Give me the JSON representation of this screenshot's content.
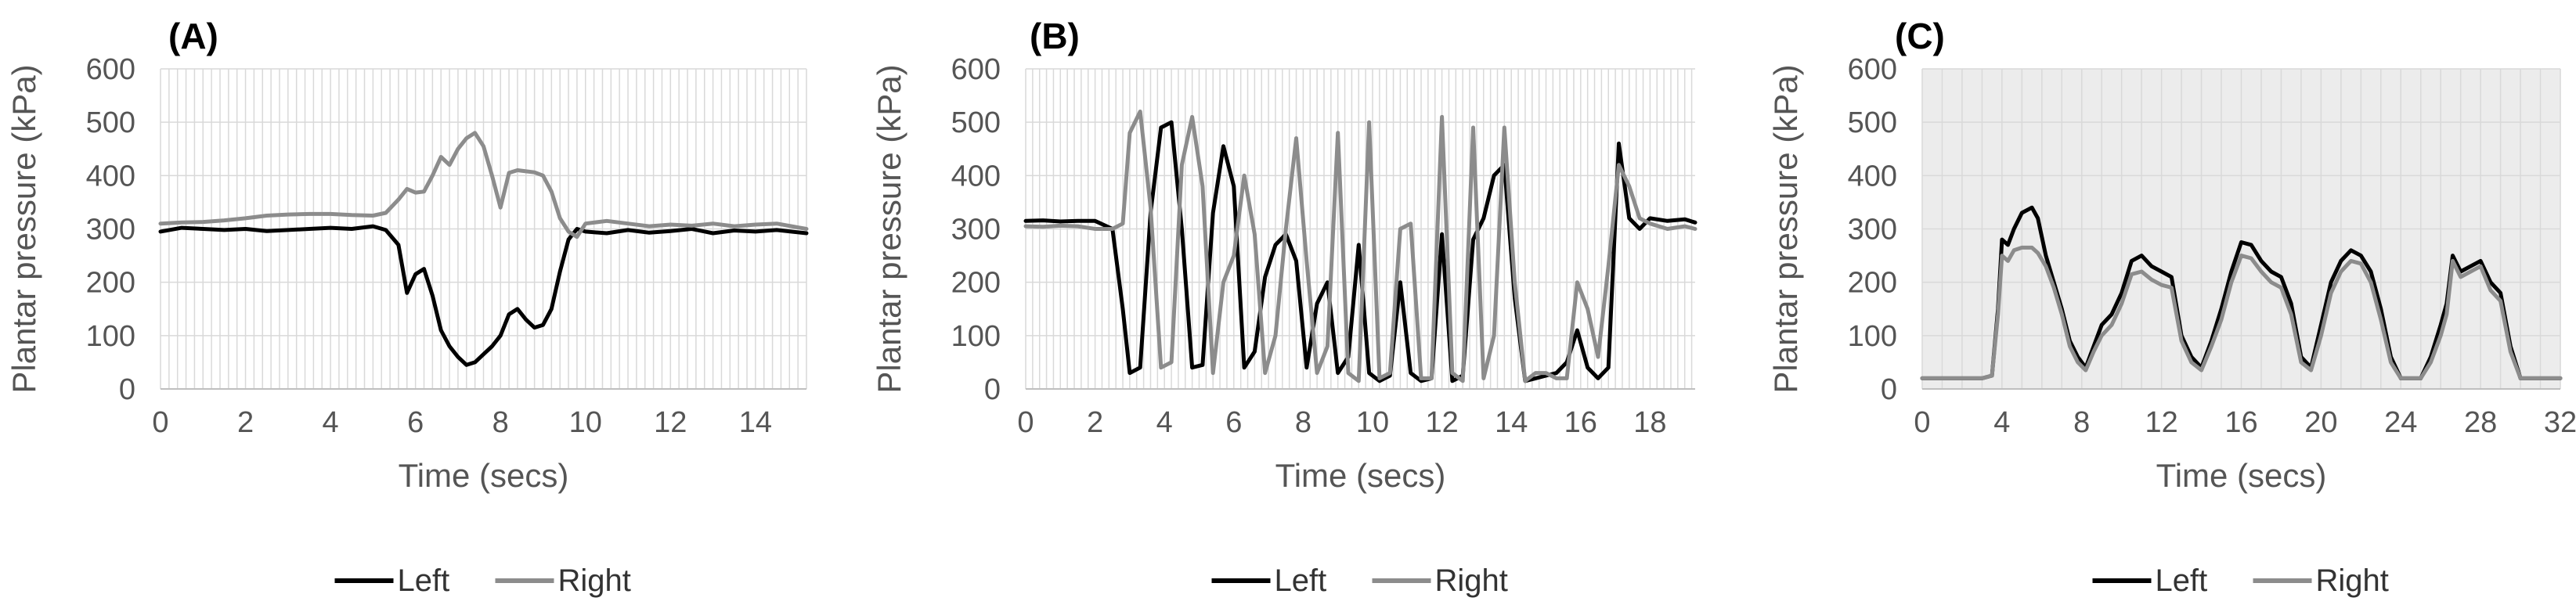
{
  "colors": {
    "left": "#000000",
    "right": "#8c8c8c",
    "grid": "#d9d9d9",
    "plot_bg_c": "#ececec"
  },
  "chart_data": [
    {
      "type": "line",
      "panel_label": "(A)",
      "xlabel": "Time (secs)",
      "ylabel": "Plantar pressure (kPa)",
      "xlim": [
        0,
        15.2
      ],
      "ylim": [
        0,
        600
      ],
      "xticks": [
        0,
        2,
        4,
        6,
        8,
        10,
        12,
        14
      ],
      "yticks": [
        0,
        100,
        200,
        300,
        400,
        500,
        600
      ],
      "legend_position": "bottom",
      "series": [
        {
          "name": "Left",
          "color": "#000000",
          "x": [
            0,
            0.5,
            1,
            1.5,
            2,
            2.5,
            3,
            3.5,
            4,
            4.5,
            5,
            5.3,
            5.6,
            5.8,
            6,
            6.2,
            6.4,
            6.6,
            6.8,
            7,
            7.2,
            7.4,
            7.6,
            7.8,
            8,
            8.2,
            8.4,
            8.6,
            8.8,
            9,
            9.2,
            9.4,
            9.6,
            9.8,
            10,
            10.5,
            11,
            11.5,
            12,
            12.5,
            13,
            13.5,
            14,
            14.5,
            15.2
          ],
          "y": [
            295,
            302,
            300,
            298,
            300,
            296,
            298,
            300,
            302,
            300,
            305,
            298,
            270,
            180,
            215,
            225,
            175,
            110,
            80,
            60,
            45,
            50,
            65,
            80,
            100,
            140,
            150,
            130,
            115,
            120,
            150,
            220,
            280,
            300,
            295,
            292,
            298,
            293,
            296,
            300,
            292,
            297,
            295,
            298,
            292
          ]
        },
        {
          "name": "Right",
          "color": "#8c8c8c",
          "x": [
            0,
            0.5,
            1,
            1.5,
            2,
            2.5,
            3,
            3.5,
            4,
            4.5,
            5,
            5.3,
            5.6,
            5.8,
            6,
            6.2,
            6.4,
            6.6,
            6.8,
            7,
            7.2,
            7.4,
            7.6,
            7.8,
            8,
            8.2,
            8.4,
            8.6,
            8.8,
            9,
            9.2,
            9.4,
            9.6,
            9.8,
            10,
            10.5,
            11,
            11.5,
            12,
            12.5,
            13,
            13.5,
            14,
            14.5,
            15.2
          ],
          "y": [
            310,
            312,
            313,
            316,
            320,
            325,
            327,
            328,
            328,
            326,
            325,
            330,
            355,
            375,
            368,
            370,
            400,
            435,
            420,
            450,
            470,
            480,
            455,
            400,
            340,
            405,
            410,
            408,
            406,
            400,
            370,
            320,
            295,
            285,
            310,
            315,
            310,
            305,
            308,
            306,
            310,
            305,
            308,
            310,
            300
          ]
        }
      ]
    },
    {
      "type": "line",
      "panel_label": "(B)",
      "xlabel": "Time (secs)",
      "ylabel": "Plantar pressure (kPa)",
      "xlim": [
        0,
        19.3
      ],
      "ylim": [
        0,
        600
      ],
      "xticks": [
        0,
        2,
        4,
        6,
        8,
        10,
        12,
        14,
        16,
        18
      ],
      "yticks": [
        0,
        100,
        200,
        300,
        400,
        500,
        600
      ],
      "legend_position": "bottom",
      "series": [
        {
          "name": "Left",
          "color": "#000000",
          "x": [
            0,
            0.5,
            1,
            1.5,
            2,
            2.5,
            2.8,
            3,
            3.3,
            3.6,
            3.9,
            4.2,
            4.5,
            4.8,
            5.1,
            5.4,
            5.7,
            6,
            6.3,
            6.6,
            6.9,
            7.2,
            7.5,
            7.8,
            8.1,
            8.4,
            8.7,
            9,
            9.3,
            9.6,
            9.9,
            10.2,
            10.5,
            10.8,
            11.1,
            11.4,
            11.7,
            12,
            12.3,
            12.6,
            12.9,
            13.2,
            13.5,
            13.8,
            14.1,
            14.4,
            14.7,
            15,
            15.3,
            15.6,
            15.9,
            16.2,
            16.5,
            16.8,
            17.1,
            17.4,
            17.7,
            18,
            18.5,
            19,
            19.3
          ],
          "y": [
            315,
            316,
            314,
            315,
            315,
            300,
            150,
            30,
            40,
            330,
            490,
            500,
            300,
            40,
            45,
            330,
            455,
            380,
            40,
            70,
            210,
            270,
            290,
            240,
            40,
            160,
            200,
            30,
            60,
            270,
            30,
            15,
            25,
            200,
            30,
            15,
            20,
            290,
            15,
            25,
            280,
            320,
            400,
            420,
            170,
            15,
            20,
            25,
            30,
            50,
            110,
            40,
            20,
            40,
            460,
            320,
            300,
            320,
            315,
            318,
            312
          ]
        },
        {
          "name": "Right",
          "color": "#8c8c8c",
          "x": [
            0,
            0.5,
            1,
            1.5,
            2,
            2.5,
            2.8,
            3,
            3.3,
            3.6,
            3.9,
            4.2,
            4.5,
            4.8,
            5.1,
            5.4,
            5.7,
            6,
            6.3,
            6.6,
            6.9,
            7.2,
            7.5,
            7.8,
            8.1,
            8.4,
            8.7,
            9,
            9.3,
            9.6,
            9.9,
            10.2,
            10.5,
            10.8,
            11.1,
            11.4,
            11.7,
            12,
            12.3,
            12.6,
            12.9,
            13.2,
            13.5,
            13.8,
            14.1,
            14.4,
            14.7,
            15,
            15.3,
            15.6,
            15.9,
            16.2,
            16.5,
            16.8,
            17.1,
            17.4,
            17.7,
            18,
            18.5,
            19,
            19.3
          ],
          "y": [
            305,
            304,
            306,
            305,
            300,
            300,
            310,
            480,
            520,
            340,
            40,
            50,
            420,
            510,
            380,
            30,
            200,
            250,
            400,
            290,
            30,
            100,
            300,
            470,
            240,
            30,
            80,
            480,
            30,
            15,
            500,
            20,
            30,
            300,
            310,
            20,
            20,
            510,
            30,
            15,
            490,
            20,
            100,
            490,
            200,
            15,
            30,
            30,
            20,
            20,
            200,
            150,
            60,
            230,
            420,
            380,
            320,
            310,
            300,
            305,
            300
          ]
        }
      ]
    },
    {
      "type": "line",
      "panel_label": "(C)",
      "xlabel": "Time (secs)",
      "ylabel": "Plantar pressure (kPa)",
      "xlim": [
        0,
        32
      ],
      "ylim": [
        0,
        600
      ],
      "xticks": [
        0,
        4,
        8,
        12,
        16,
        20,
        24,
        28,
        32
      ],
      "yticks": [
        0,
        100,
        200,
        300,
        400,
        500,
        600
      ],
      "legend_position": "bottom",
      "series": [
        {
          "name": "Left",
          "color": "#000000",
          "x": [
            0,
            1,
            2,
            3,
            3.5,
            3.8,
            4,
            4.3,
            4.6,
            5,
            5.5,
            5.8,
            6.2,
            6.6,
            7,
            7.4,
            7.8,
            8.2,
            8.6,
            9,
            9.5,
            10,
            10.5,
            11,
            11.5,
            12,
            12.5,
            13,
            13.5,
            14,
            14.5,
            15,
            15.5,
            16,
            16.5,
            17,
            17.5,
            18,
            18.5,
            19,
            19.5,
            20,
            20.5,
            21,
            21.5,
            22,
            22.5,
            23,
            23.5,
            24,
            24.5,
            25,
            25.5,
            26,
            26.3,
            26.6,
            27,
            27.5,
            28,
            28.5,
            29,
            29.5,
            30,
            31,
            32
          ],
          "y": [
            20,
            20,
            20,
            20,
            25,
            150,
            280,
            270,
            300,
            330,
            340,
            320,
            250,
            200,
            150,
            90,
            60,
            40,
            80,
            120,
            140,
            180,
            240,
            250,
            230,
            220,
            210,
            100,
            60,
            40,
            90,
            150,
            220,
            275,
            270,
            240,
            220,
            210,
            160,
            60,
            40,
            120,
            200,
            240,
            260,
            250,
            220,
            150,
            60,
            20,
            20,
            20,
            60,
            120,
            160,
            250,
            220,
            230,
            240,
            200,
            180,
            80,
            20,
            20,
            20
          ]
        },
        {
          "name": "Right",
          "color": "#8c8c8c",
          "x": [
            0,
            1,
            2,
            3,
            3.5,
            3.8,
            4,
            4.3,
            4.6,
            5,
            5.5,
            5.8,
            6.2,
            6.6,
            7,
            7.4,
            7.8,
            8.2,
            8.6,
            9,
            9.5,
            10,
            10.5,
            11,
            11.5,
            12,
            12.5,
            13,
            13.5,
            14,
            14.5,
            15,
            15.5,
            16,
            16.5,
            17,
            17.5,
            18,
            18.5,
            19,
            19.5,
            20,
            20.5,
            21,
            21.5,
            22,
            22.5,
            23,
            23.5,
            24,
            24.5,
            25,
            25.5,
            26,
            26.3,
            26.6,
            27,
            27.5,
            28,
            28.5,
            29,
            29.5,
            30,
            31,
            32
          ],
          "y": [
            20,
            20,
            20,
            20,
            25,
            140,
            250,
            240,
            260,
            265,
            265,
            255,
            230,
            190,
            140,
            80,
            50,
            35,
            70,
            100,
            120,
            160,
            215,
            220,
            205,
            195,
            190,
            90,
            50,
            35,
            80,
            130,
            200,
            250,
            245,
            220,
            200,
            190,
            140,
            50,
            35,
            100,
            180,
            220,
            240,
            235,
            200,
            130,
            50,
            20,
            20,
            20,
            50,
            100,
            140,
            240,
            210,
            220,
            230,
            185,
            165,
            70,
            20,
            20,
            20
          ]
        }
      ]
    }
  ]
}
